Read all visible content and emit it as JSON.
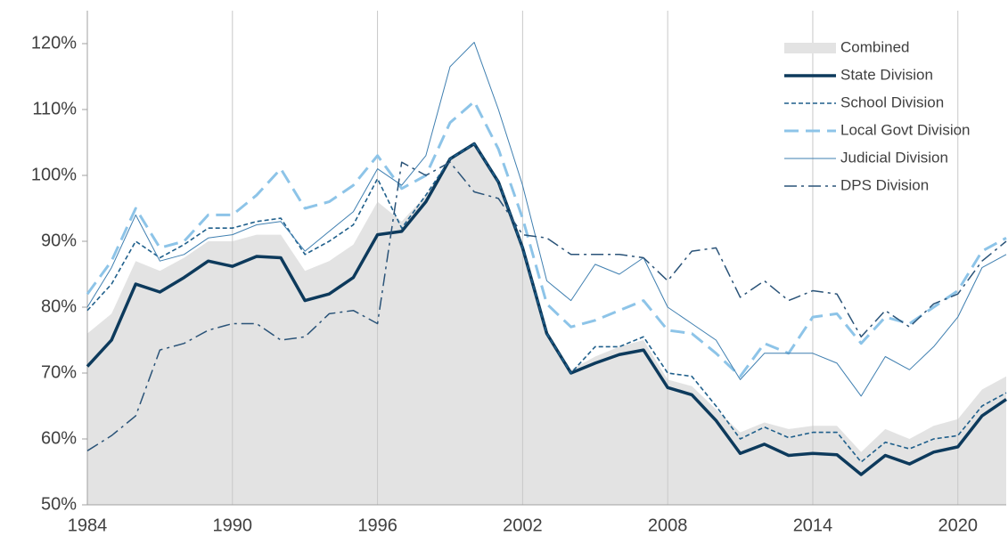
{
  "chart_data": {
    "type": "line",
    "x": [
      1984,
      1985,
      1986,
      1987,
      1988,
      1989,
      1990,
      1991,
      1992,
      1993,
      1994,
      1995,
      1996,
      1997,
      1998,
      1999,
      2000,
      2001,
      2002,
      2003,
      2004,
      2005,
      2006,
      2007,
      2008,
      2009,
      2010,
      2011,
      2012,
      2013,
      2014,
      2015,
      2016,
      2017,
      2018,
      2019,
      2020,
      2021,
      2022
    ],
    "xlim": [
      1984,
      2022
    ],
    "xticks": [
      1984,
      1990,
      1996,
      2002,
      2008,
      2014,
      2020
    ],
    "ylim": [
      50,
      125
    ],
    "yticks": [
      {
        "value": 50,
        "label": "50%"
      },
      {
        "value": 60,
        "label": "60%"
      },
      {
        "value": 70,
        "label": "70%"
      },
      {
        "value": 80,
        "label": "80%"
      },
      {
        "value": 90,
        "label": "90%"
      },
      {
        "value": 100,
        "label": "100%"
      },
      {
        "value": 110,
        "label": "110%"
      },
      {
        "value": 120,
        "label": "120%"
      }
    ],
    "grid": "x",
    "legend": "top-right",
    "series": [
      {
        "name": "Combined",
        "kind": "area",
        "color": "#e3e3e3",
        "values": [
          76,
          79,
          87,
          85.5,
          87.5,
          90,
          90,
          91,
          91,
          85.5,
          87,
          89.5,
          96,
          93,
          97,
          102.5,
          104.8,
          99,
          89,
          76.5,
          70.5,
          72.5,
          74,
          75,
          69,
          68,
          64.5,
          61,
          62.5,
          61.5,
          62,
          62,
          58,
          61.5,
          60,
          62,
          63,
          67.5,
          69.5
        ]
      },
      {
        "name": "State Division",
        "kind": "line",
        "color": "#0d3a5c",
        "values": [
          71,
          75,
          83.5,
          82.3,
          84.5,
          87,
          86.2,
          87.7,
          87.5,
          81,
          82,
          84.5,
          91,
          91.5,
          96,
          102.5,
          104.8,
          99,
          89,
          76,
          70,
          71.5,
          72.8,
          73.5,
          67.8,
          66.7,
          62.8,
          57.8,
          59.2,
          57.5,
          57.8,
          57.6,
          54.6,
          57.5,
          56.2,
          58,
          58.8,
          63.5,
          66
        ]
      },
      {
        "name": "School Division",
        "kind": "line",
        "color": "#1f5f8b",
        "values": [
          79.5,
          83.5,
          90,
          87.5,
          89.5,
          92,
          92,
          93,
          93.5,
          88,
          90,
          92.5,
          99.5,
          92,
          97,
          102.5,
          104.8,
          99,
          89,
          76,
          70,
          74,
          74,
          75.5,
          70,
          69.5,
          65,
          60,
          61.8,
          60.2,
          61,
          61,
          56.5,
          59.5,
          58.5,
          60,
          60.5,
          65,
          67
        ]
      },
      {
        "name": "Local Govt Division",
        "kind": "line",
        "color": "#8dc4e8",
        "values": [
          82,
          87,
          95,
          89,
          90,
          94,
          94,
          97,
          101,
          95,
          96,
          98.5,
          103,
          98,
          100,
          108,
          111.2,
          104,
          93.5,
          80.5,
          77,
          78,
          79.5,
          81,
          76.5,
          76,
          73,
          69.5,
          74.5,
          73,
          78.5,
          79,
          74.5,
          78.5,
          77.5,
          80,
          82.5,
          88.5,
          90.5
        ]
      },
      {
        "name": "Judicial Division",
        "kind": "line",
        "color": "#3f7fb0",
        "values": [
          80,
          86,
          94,
          87,
          88,
          90.5,
          91,
          92.5,
          93,
          88.5,
          91.5,
          94.5,
          101,
          98.5,
          103,
          116.5,
          120.2,
          110,
          98.5,
          84,
          81,
          86.5,
          85,
          87.5,
          80,
          77.5,
          75,
          69,
          73,
          73,
          73,
          71.5,
          66.5,
          72.5,
          70.5,
          74,
          78.5,
          86,
          88
        ]
      },
      {
        "name": "DPS Division",
        "kind": "line",
        "color": "#2a5378",
        "values": [
          58.2,
          60.5,
          63.5,
          73.5,
          74.5,
          76.5,
          77.5,
          77.5,
          75,
          75.5,
          79,
          79.5,
          77.5,
          102,
          100,
          102,
          97.5,
          96.5,
          91,
          90.5,
          88,
          88,
          88,
          87.5,
          84,
          88.5,
          89,
          81.5,
          84,
          81,
          82.5,
          82,
          75.5,
          79.5,
          77,
          80.5,
          82,
          87,
          90
        ]
      }
    ]
  }
}
